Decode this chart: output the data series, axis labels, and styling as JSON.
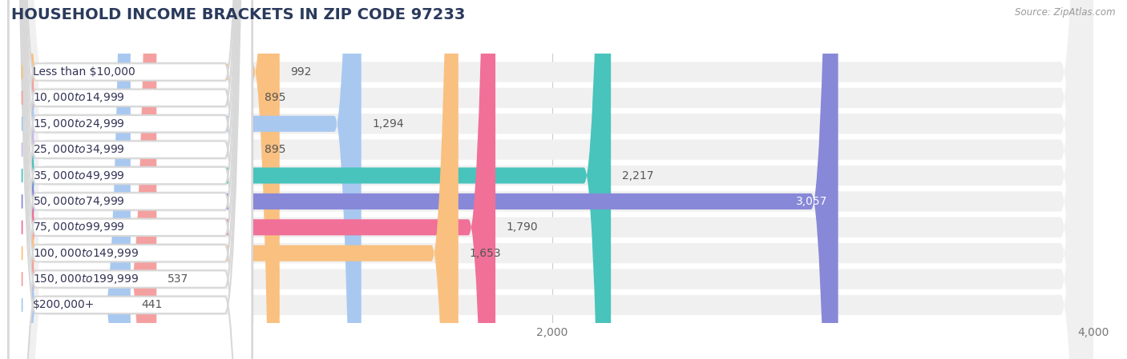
{
  "title": "HOUSEHOLD INCOME BRACKETS IN ZIP CODE 97233",
  "source": "Source: ZipAtlas.com",
  "categories": [
    "Less than $10,000",
    "$10,000 to $14,999",
    "$15,000 to $24,999",
    "$25,000 to $34,999",
    "$35,000 to $49,999",
    "$50,000 to $74,999",
    "$75,000 to $99,999",
    "$100,000 to $149,999",
    "$150,000 to $199,999",
    "$200,000+"
  ],
  "values": [
    992,
    895,
    1294,
    895,
    2217,
    3057,
    1790,
    1653,
    537,
    441
  ],
  "bar_colors": [
    "#F9C080",
    "#F4A0A0",
    "#A8C8F0",
    "#C9B8E8",
    "#48C4BC",
    "#8888D8",
    "#F07098",
    "#F9C080",
    "#F4A0A0",
    "#A8C8F0"
  ],
  "value_labels": [
    "992",
    "895",
    "1,294",
    "895",
    "2,217",
    "3,057",
    "1,790",
    "1,653",
    "537",
    "441"
  ],
  "value_label_inside": [
    false,
    false,
    false,
    false,
    false,
    true,
    false,
    false,
    false,
    false
  ],
  "xlim": [
    0,
    4000
  ],
  "xticks": [
    0,
    2000,
    4000
  ],
  "background_color": "#ffffff",
  "row_bg_color": "#f0f0f0",
  "title_fontsize": 14,
  "label_fontsize": 10,
  "value_fontsize": 10,
  "bar_height": 0.62,
  "title_color": "#2a3a5c",
  "label_text_color": "#333355",
  "value_color_outside": "#555555",
  "value_color_inside": "#ffffff"
}
